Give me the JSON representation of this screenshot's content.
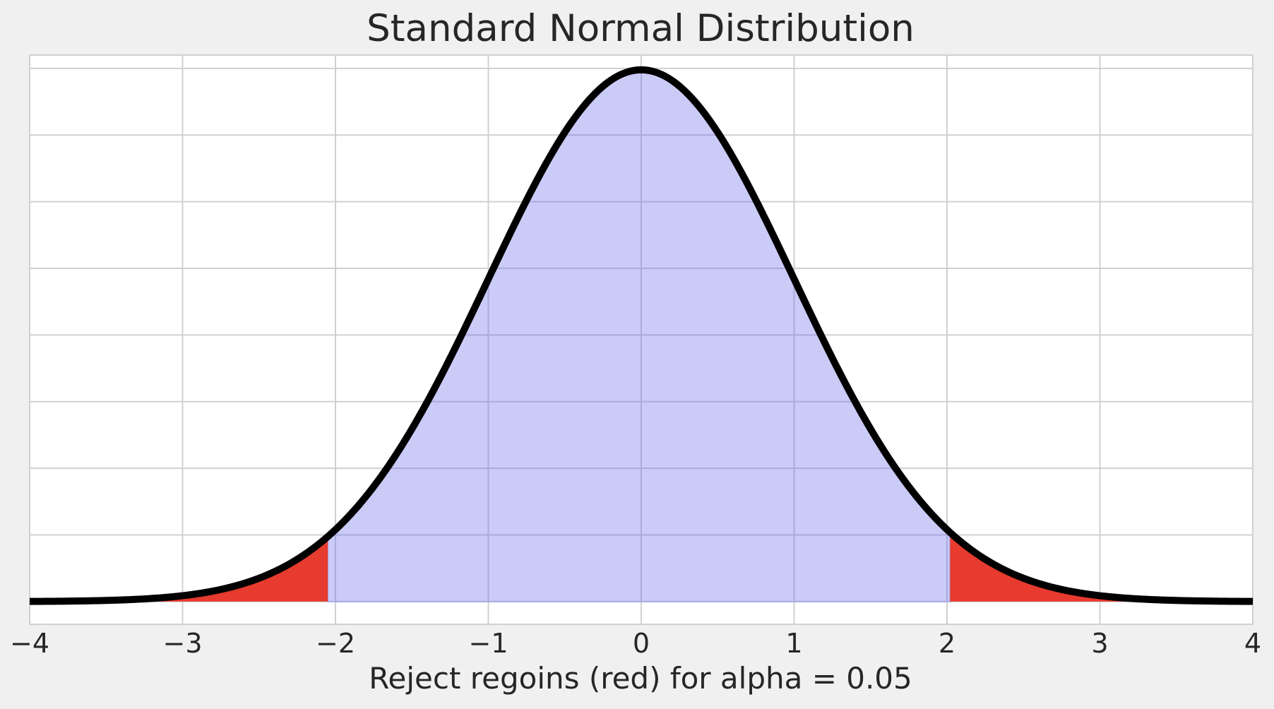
{
  "chart_data": {
    "type": "area",
    "title": "Standard Normal Distribution",
    "xlabel": "Reject regoins (red) for alpha = 0.05",
    "ylabel": "",
    "xlim": [
      -4,
      4
    ],
    "ylim": [
      -0.017,
      0.41
    ],
    "x_ticks": [
      -4,
      -3,
      -2,
      -1,
      0,
      1,
      2,
      3,
      4
    ],
    "x_tick_labels": [
      "−4",
      "−3",
      "−2",
      "−1",
      "0",
      "1",
      "2",
      "3",
      "4"
    ],
    "y_gridlines": [
      0.0,
      0.05,
      0.1,
      0.15,
      0.2,
      0.25,
      0.3,
      0.35,
      0.4
    ],
    "y_tick_labels_shown": false,
    "grid": true,
    "distribution": {
      "name": "standard normal",
      "mean": 0,
      "sd": 1
    },
    "alpha": 0.05,
    "critical_values": [
      -2.05,
      2.02
    ],
    "series": [
      {
        "role": "pdf-curve",
        "color": "#000000"
      },
      {
        "role": "acceptance-region",
        "x_range": [
          -2.05,
          2.02
        ],
        "color": "#c8c8f8"
      },
      {
        "role": "reject-region-left",
        "x_range": [
          -4,
          -2.05
        ],
        "color": "#e63b2e"
      },
      {
        "role": "reject-region-right",
        "x_range": [
          2.02,
          4
        ],
        "color": "#e63b2e"
      }
    ],
    "colors": {
      "figure_background": "#f0f0f0",
      "plot_background": "#ffffff",
      "grid": "#d0d0d0",
      "text": "#262626"
    }
  }
}
